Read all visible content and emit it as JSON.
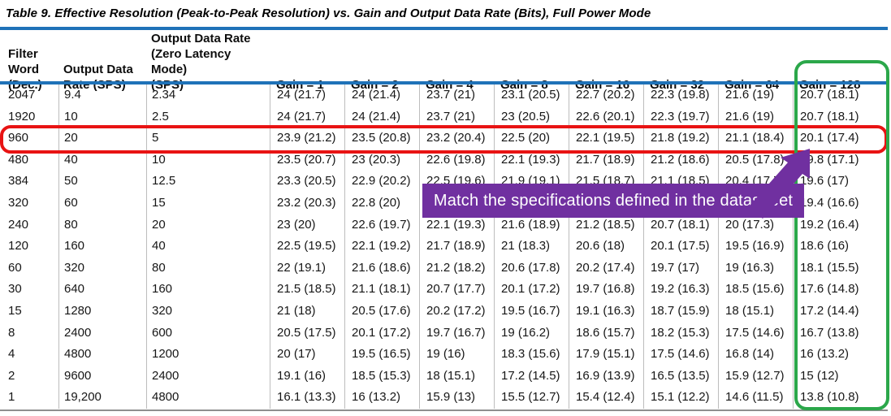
{
  "title": "Table 9. Effective Resolution (Peak-to-Peak Resolution) vs. Gain and Output Data Rate (Bits), Full Power Mode",
  "annotation": {
    "note": "Match the specifications defined in the datasheet"
  },
  "colors": {
    "table_rule_blue": "#1F72B8",
    "red_box": "#E81313",
    "green_box": "#2BA74A",
    "purple_annotation": "#7030A0"
  },
  "table": {
    "header": {
      "col1": [
        "Filter",
        "Word",
        "(Dec.)"
      ],
      "col2": [
        "Output Data",
        "Rate (SPS)"
      ],
      "col3": [
        "Output Data Rate",
        "(Zero Latency Mode)",
        "(SPS)"
      ],
      "gains": [
        "Gain = 1",
        "Gain = 2",
        "Gain = 4",
        "Gain = 8",
        "Gain = 16",
        "Gain = 32",
        "Gain = 64",
        "Gain = 128"
      ]
    },
    "highlighted_row_filter_word": "960",
    "highlighted_column": "Gain = 128",
    "rows": [
      [
        "2047",
        "9.4",
        "2.34",
        "24 (21.7)",
        "24 (21.4)",
        "23.7 (21)",
        "23.1 (20.5)",
        "22.7 (20.2)",
        "22.3 (19.8)",
        "21.6 (19)",
        "20.7 (18.1)"
      ],
      [
        "1920",
        "10",
        "2.5",
        "24 (21.7)",
        "24 (21.4)",
        "23.7 (21)",
        "23 (20.5)",
        "22.6 (20.1)",
        "22.3 (19.7)",
        "21.6 (19)",
        "20.7 (18.1)"
      ],
      [
        "960",
        "20",
        "5",
        "23.9 (21.2)",
        "23.5 (20.8)",
        "23.2 (20.4)",
        "22.5 (20)",
        "22.1 (19.5)",
        "21.8 (19.2)",
        "21.1 (18.4)",
        "20.1 (17.4)"
      ],
      [
        "480",
        "40",
        "10",
        "23.5 (20.7)",
        "23 (20.3)",
        "22.6 (19.8)",
        "22.1 (19.3)",
        "21.7 (18.9)",
        "21.2 (18.6)",
        "20.5 (17.8)",
        "19.8 (17.1)"
      ],
      [
        "384",
        "50",
        "12.5",
        "23.3 (20.5)",
        "22.9 (20.2)",
        "22.5 (19.6)",
        "21.9 (19.1)",
        "21.5 (18.7)",
        "21.1 (18.5)",
        "20.4 (17.7)",
        "19.6 (17)"
      ],
      [
        "320",
        "60",
        "15",
        "23.2 (20.3)",
        "22.8 (20)",
        "",
        "",
        "",
        "",
        "",
        "19.4 (16.6)"
      ],
      [
        "240",
        "80",
        "20",
        "23 (20)",
        "22.6 (19.7)",
        "22.1 (19.3)",
        "21.6 (18.9)",
        "21.2 (18.5)",
        "20.7 (18.1)",
        "20 (17.3)",
        "19.2 (16.4)"
      ],
      [
        "120",
        "160",
        "40",
        "22.5 (19.5)",
        "22.1 (19.2)",
        "21.7 (18.9)",
        "21 (18.3)",
        "20.6 (18)",
        "20.1 (17.5)",
        "19.5 (16.9)",
        "18.6 (16)"
      ],
      [
        "60",
        "320",
        "80",
        "22 (19.1)",
        "21.6 (18.6)",
        "21.2 (18.2)",
        "20.6 (17.8)",
        "20.2 (17.4)",
        "19.7 (17)",
        "19 (16.3)",
        "18.1 (15.5)"
      ],
      [
        "30",
        "640",
        "160",
        "21.5 (18.5)",
        "21.1 (18.1)",
        "20.7 (17.7)",
        "20.1 (17.2)",
        "19.7 (16.8)",
        "19.2 (16.3)",
        "18.5 (15.6)",
        "17.6 (14.8)"
      ],
      [
        "15",
        "1280",
        "320",
        "21 (18)",
        "20.5 (17.6)",
        "20.2 (17.2)",
        "19.5 (16.7)",
        "19.1 (16.3)",
        "18.7 (15.9)",
        "18 (15.1)",
        "17.2 (14.4)"
      ],
      [
        "8",
        "2400",
        "600",
        "20.5 (17.5)",
        "20.1 (17.2)",
        "19.7 (16.7)",
        "19 (16.2)",
        "18.6 (15.7)",
        "18.2 (15.3)",
        "17.5 (14.6)",
        "16.7 (13.8)"
      ],
      [
        "4",
        "4800",
        "1200",
        "20 (17)",
        "19.5 (16.5)",
        "19 (16)",
        "18.3 (15.6)",
        "17.9 (15.1)",
        "17.5 (14.6)",
        "16.8 (14)",
        "16 (13.2)"
      ],
      [
        "2",
        "9600",
        "2400",
        "19.1 (16)",
        "18.5 (15.3)",
        "18 (15.1)",
        "17.2 (14.5)",
        "16.9 (13.9)",
        "16.5 (13.5)",
        "15.9 (12.7)",
        "15 (12)"
      ],
      [
        "1",
        "19,200",
        "4800",
        "16.1 (13.3)",
        "16 (13.2)",
        "15.9 (13)",
        "15.5 (12.7)",
        "15.4 (12.4)",
        "15.1 (12.2)",
        "14.6 (11.5)",
        "13.8 (10.8)"
      ]
    ]
  }
}
